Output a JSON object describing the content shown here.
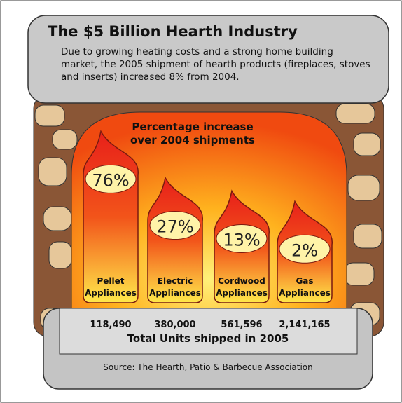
{
  "chart_data": {
    "type": "bar",
    "title": "The $5 Billion Hearth Industry",
    "subtitle": "Due to growing heating costs and a strong home building market, the 2005 shipment of hearth products (fireplaces, stoves and inserts) increased 8% from 2004.",
    "annotation": "Percentage increase over 2004 shipments",
    "categories": [
      "Pellet Appliances",
      "Electric Appliances",
      "Cordwood Appliances",
      "Gas Appliances"
    ],
    "values": [
      76,
      27,
      13,
      2
    ],
    "value_labels": [
      "76%",
      "27%",
      "13%",
      "2%"
    ],
    "shipments": {
      "name": "Total Units shipped in 2005",
      "values": [
        118490,
        380000,
        561596,
        2141165
      ],
      "value_labels": [
        "118,490",
        "380,000",
        "561,596",
        "2,141,165"
      ]
    },
    "source": "Source: The Hearth, Patio & Barbecue Association"
  }
}
